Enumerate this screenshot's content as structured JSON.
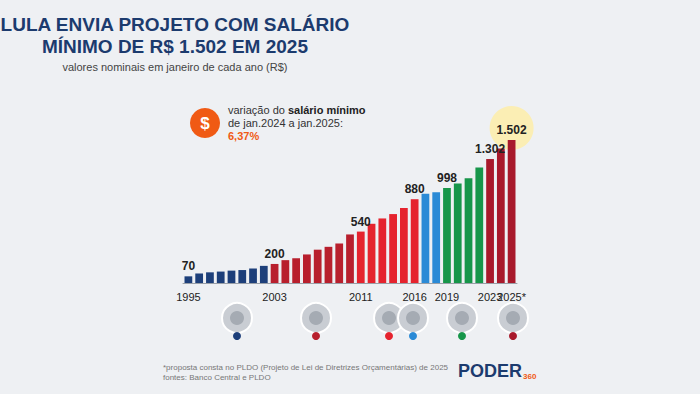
{
  "chart_data": {
    "type": "bar",
    "title": "LULA ENVIA PROJETO COM SALÁRIO MÍNIMO DE R$ 1.502 EM 2025",
    "subtitle": "valores nominais em janeiro de cada ano (R$)",
    "annotation": {
      "icon": "$",
      "lines": [
        "variação do salário mínimo",
        "de jan.2024 a jan.2025:"
      ],
      "highlight": "6,37%"
    },
    "footnotes": [
      "*proposta consta no PLDO (Projeto de Lei de Diretrizes Orçamentárias) de 2025",
      "fontes: Banco Central e PLDO"
    ],
    "logo": [
      "PODER",
      "360"
    ],
    "categories": [
      "1995",
      null,
      null,
      null,
      null,
      null,
      null,
      null,
      "2003",
      null,
      null,
      null,
      null,
      null,
      null,
      null,
      "2011",
      null,
      null,
      null,
      null,
      "2016",
      null,
      null,
      "2019",
      null,
      null,
      null,
      "2023",
      null,
      "2025*"
    ],
    "values": [
      70,
      100,
      112,
      120,
      130,
      136,
      151,
      180,
      200,
      240,
      260,
      300,
      350,
      380,
      415,
      510,
      540,
      622,
      678,
      724,
      788,
      880,
      937,
      954,
      998,
      1045,
      1100,
      1212,
      1302,
      1412,
      1502
    ],
    "value_labels": [
      "70",
      null,
      null,
      null,
      null,
      null,
      null,
      null,
      "200",
      null,
      null,
      null,
      null,
      null,
      null,
      null,
      "540",
      null,
      null,
      null,
      null,
      "880",
      null,
      null,
      "998",
      null,
      null,
      null,
      "1.302",
      null,
      "1.502"
    ],
    "colors": [
      "#1d3f7a",
      "#1d3f7a",
      "#1d3f7a",
      "#1d3f7a",
      "#1d3f7a",
      "#1d3f7a",
      "#1d3f7a",
      "#1d3f7a",
      "#b81f2d",
      "#b81f2d",
      "#b81f2d",
      "#b81f2d",
      "#b81f2d",
      "#b81f2d",
      "#b81f2d",
      "#b81f2d",
      "#e5232e",
      "#e5232e",
      "#e5232e",
      "#e5232e",
      "#e5232e",
      "#e5232e",
      "#2a8ad6",
      "#2a8ad6",
      "#17964a",
      "#17964a",
      "#17964a",
      "#17964a",
      "#a8192b",
      "#a8192b",
      "#a8192b"
    ],
    "ylim": [
      0,
      1502
    ],
    "yticks": [],
    "grid": false,
    "data_labels": true,
    "tick_labels": "x"
  }
}
